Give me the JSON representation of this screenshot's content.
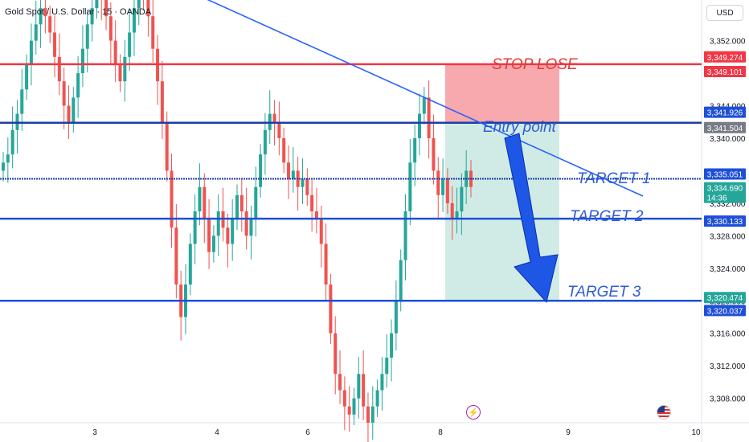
{
  "header": {
    "symbol_title": "Gold Spot / U.S. Dollar · 15 · OANDA",
    "currency": "USD"
  },
  "colors": {
    "up": "#26a69a",
    "down": "#ef5350",
    "stop_line": "#f23645",
    "level_line": "#1e4fd8",
    "trend_line": "#2962ff",
    "arrow": "#1e56e6",
    "annotation_red": "#e53935",
    "annotation_blue": "#2f5bd6"
  },
  "icons": [
    "lightning-icon",
    "us-flag-icon"
  ],
  "chart_data": {
    "type": "candlestick",
    "ylim": [
      3305,
      3357
    ],
    "x_ticks": [
      "3",
      "4",
      "6",
      "8",
      "9",
      "10"
    ],
    "y_ticks": [
      "3,352.000",
      "3,348.000",
      "3,344.000",
      "3,340.000",
      "3,336.000",
      "3,332.000",
      "3,328.000",
      "3,324.000",
      "3,320.000",
      "3,316.000",
      "3,312.000",
      "3,308.000"
    ],
    "y_tick_values": [
      3352,
      3348,
      3344,
      3340,
      3336,
      3332,
      3328,
      3324,
      3320,
      3316,
      3312,
      3308
    ],
    "price_tags": [
      {
        "label": "3,349.274",
        "value": 3350.0,
        "color": "#f23645"
      },
      {
        "label": "3,349.101",
        "value": 3348.2,
        "color": "#f23645"
      },
      {
        "label": "3,341.926",
        "value": 3343.2,
        "color": "#1e4fd8"
      },
      {
        "label": "3,341.504",
        "value": 3341.3,
        "color": "#787b86"
      },
      {
        "label": "3,335.051",
        "value": 3335.6,
        "color": "#1e4fd8"
      },
      {
        "label": "3,334.690",
        "value": 3333.9,
        "color": "#26a69a",
        "sub": "14:36"
      },
      {
        "label": "3,330.133",
        "value": 3329.8,
        "color": "#1e4fd8"
      },
      {
        "label": "3,320.474",
        "value": 3320.4,
        "color": "#26a69a"
      },
      {
        "label": "3,320.037",
        "value": 3318.8,
        "color": "#1e4fd8"
      }
    ],
    "levels": [
      {
        "name": "stop",
        "value": 3349.1
      },
      {
        "name": "entry",
        "value": 3341.9
      },
      {
        "name": "target1",
        "value": 3335.0
      },
      {
        "name": "target2",
        "value": 3330.1
      },
      {
        "name": "target3",
        "value": 3320.0
      }
    ],
    "annotations": [
      {
        "text": "STOP LOSE",
        "color": "#e53935"
      },
      {
        "text": "Entry point",
        "color": "#2f5bd6"
      },
      {
        "text": "TARGET 1",
        "color": "#2f5bd6"
      },
      {
        "text": "TARGET 2",
        "color": "#2f5bd6"
      },
      {
        "text": "TARGET 3",
        "color": "#2f5bd6"
      }
    ],
    "risk_box": {
      "top": 3349.1,
      "bottom": 3341.9
    },
    "reward_box": {
      "top": 3341.9,
      "bottom": 3320.0
    },
    "candles_close": [
      3337,
      3338,
      3341,
      3343,
      3346,
      3349,
      3352,
      3354,
      3356,
      3355,
      3353,
      3350,
      3347,
      3344,
      3342,
      3345,
      3348,
      3351,
      3354,
      3356,
      3358,
      3357,
      3355,
      3352,
      3349,
      3347,
      3350,
      3353,
      3356,
      3358,
      3357,
      3355,
      3351,
      3347,
      3342,
      3336,
      3329,
      3322,
      3318,
      3322,
      3327,
      3331,
      3334,
      3330,
      3326,
      3328,
      3331,
      3329,
      3327,
      3330,
      3333,
      3331,
      3328,
      3330,
      3334,
      3338,
      3341,
      3343,
      3342,
      3340,
      3337,
      3335,
      3336,
      3334,
      3335,
      3333,
      3331,
      3330,
      3327,
      3322,
      3316,
      3311,
      3309,
      3307,
      3306,
      3308,
      3311,
      3307,
      3305,
      3307,
      3309,
      3311,
      3313,
      3316,
      3320,
      3325,
      3331,
      3337,
      3340,
      3343,
      3345,
      3340,
      3336,
      3333,
      3335,
      3332,
      3330,
      3331,
      3334,
      3336,
      3334
    ],
    "trend_line": {
      "from": [
        0.27,
        3358
      ],
      "to": [
        0.86,
        3332.5
      ]
    }
  },
  "annotations_text": {
    "stop": "STOP LOSE",
    "entry": "Entry point",
    "t1": "TARGET 1",
    "t2": "TARGET 2",
    "t3": "TARGET 3"
  }
}
